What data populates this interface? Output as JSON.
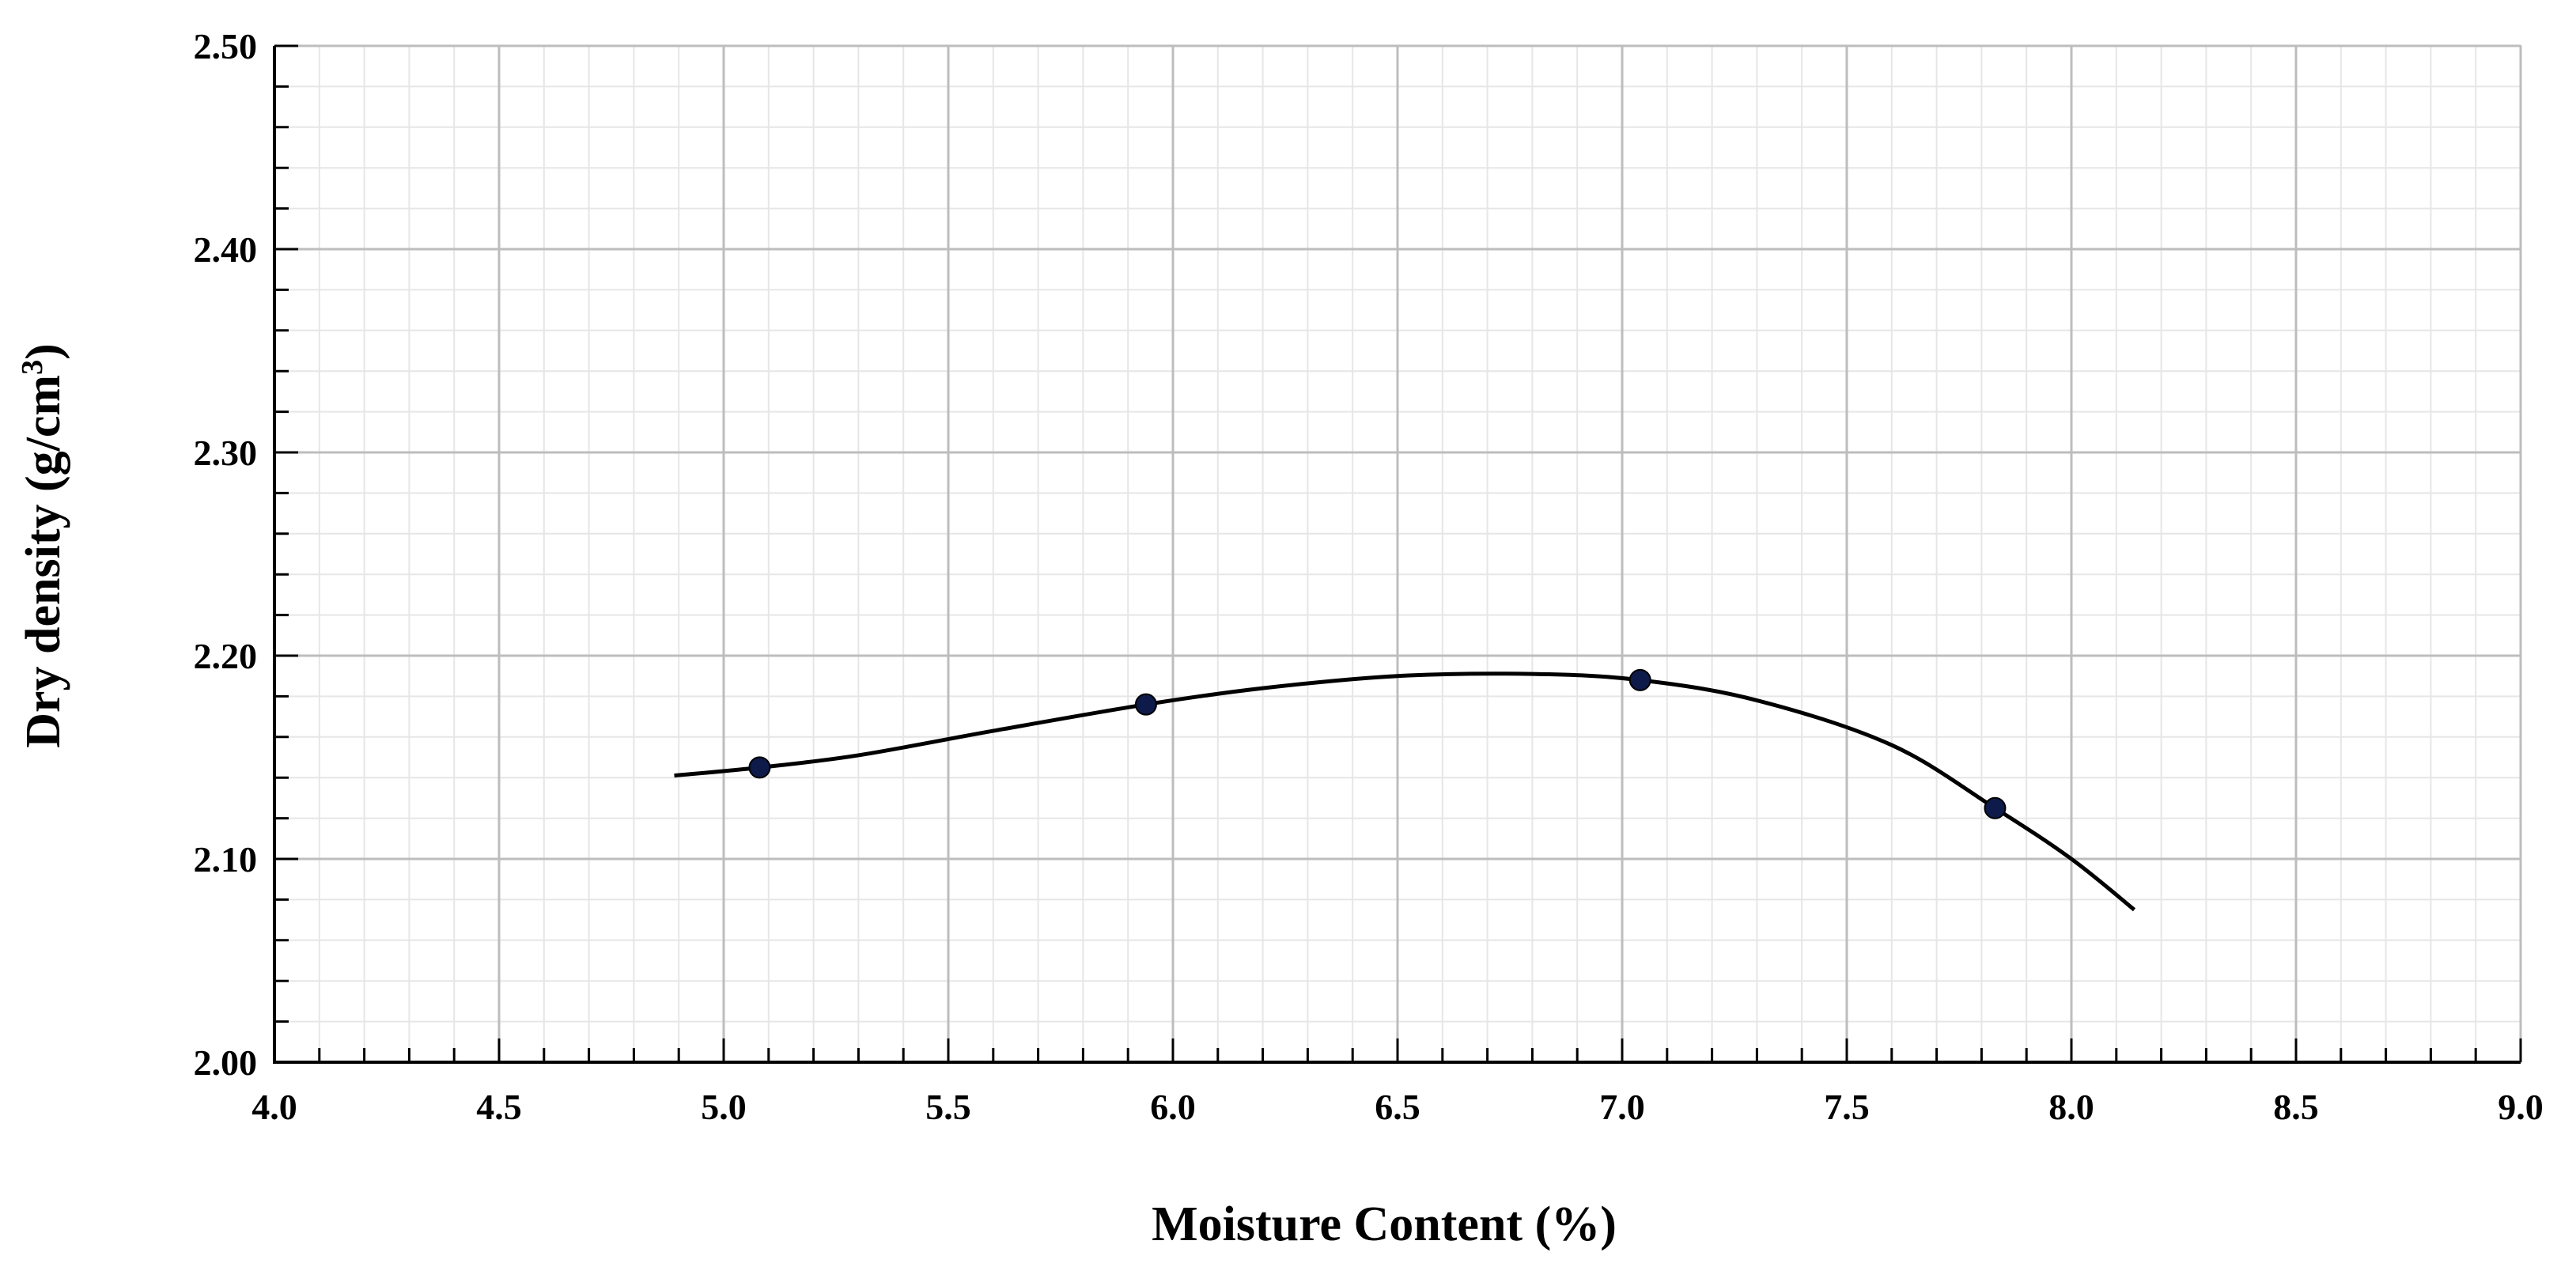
{
  "chart_data": {
    "type": "scatter",
    "xlabel": "Moisture Content (%)",
    "ylabel_main": "Dry density (g/cm",
    "ylabel_sup": "3",
    "ylabel_close": ")",
    "xlim": [
      4.0,
      9.0
    ],
    "ylim": [
      2.0,
      2.5
    ],
    "x_ticks": [
      4.0,
      4.5,
      5.0,
      5.5,
      6.0,
      6.5,
      7.0,
      7.5,
      8.0,
      8.5,
      9.0
    ],
    "x_tick_labels": [
      "4.0",
      "4.5",
      "5.0",
      "5.5",
      "6.0",
      "6.5",
      "7.0",
      "7.5",
      "8.0",
      "8.5",
      "9.0"
    ],
    "y_ticks": [
      2.0,
      2.1,
      2.2,
      2.3,
      2.4,
      2.5
    ],
    "y_tick_labels": [
      "2.00",
      "2.10",
      "2.20",
      "2.30",
      "2.40",
      "2.50"
    ],
    "x_minor_step": 0.1,
    "y_minor_step": 0.02,
    "grid": true,
    "points": [
      {
        "x": 5.08,
        "y": 2.145
      },
      {
        "x": 5.94,
        "y": 2.176
      },
      {
        "x": 7.04,
        "y": 2.188
      },
      {
        "x": 7.83,
        "y": 2.125
      }
    ],
    "trend_curve": [
      {
        "x": 4.89,
        "y": 2.141
      },
      {
        "x": 5.08,
        "y": 2.145
      },
      {
        "x": 5.3,
        "y": 2.151
      },
      {
        "x": 5.6,
        "y": 2.163
      },
      {
        "x": 5.94,
        "y": 2.176
      },
      {
        "x": 6.2,
        "y": 2.184
      },
      {
        "x": 6.5,
        "y": 2.19
      },
      {
        "x": 6.8,
        "y": 2.191
      },
      {
        "x": 7.04,
        "y": 2.188
      },
      {
        "x": 7.3,
        "y": 2.178
      },
      {
        "x": 7.6,
        "y": 2.156
      },
      {
        "x": 7.83,
        "y": 2.125
      },
      {
        "x": 8.0,
        "y": 2.1
      },
      {
        "x": 8.14,
        "y": 2.075
      }
    ],
    "colors": {
      "marker": "#0d1a4a",
      "curve": "#000000",
      "major_grid": "#bdbdbd",
      "minor_grid": "#e6e6e6"
    }
  }
}
